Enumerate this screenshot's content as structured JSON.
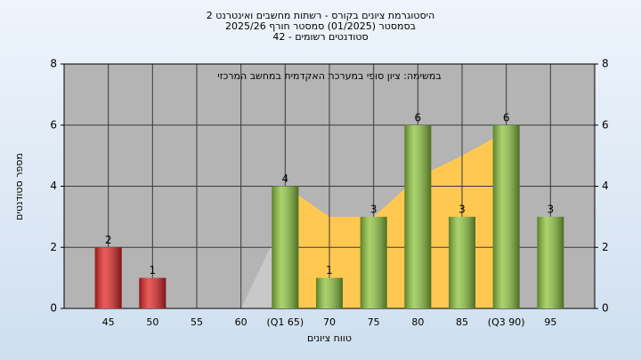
{
  "chart_data": {
    "type": "bar",
    "title": [
      "היסטוגרמת ציונים בקורס - רשתות מחשבים ואינטרנט 2",
      "בסמסטר  (01/2025)  סמסטר חורף 2025/26",
      "סטודנטים רשומים - 42"
    ],
    "annotation": "במשימה: ציון סופי במערכת האקדמית במחשב המרכזי",
    "x_label": "טווח ציונים",
    "y_label": "מספר סטודנטים",
    "categories": [
      "45",
      "50",
      "55",
      "60",
      "(Q1 65)",
      "70",
      "75",
      "80",
      "85",
      "(Q3 90)",
      "95"
    ],
    "values": [
      2,
      1,
      0,
      0,
      4,
      1,
      3,
      6,
      3,
      6,
      3
    ],
    "colors": [
      "#e02424",
      "#e02424",
      "#e02424",
      "#e02424",
      "#8cc43c",
      "#8cc43c",
      "#8cc43c",
      "#8cc43c",
      "#8cc43c",
      "#8cc43c",
      "#8cc43c"
    ],
    "overlays": [
      {
        "type": "area",
        "color": "#c8c8c8",
        "values": [
          null,
          null,
          null,
          0,
          3,
          null,
          null,
          null,
          null,
          null,
          null
        ]
      },
      {
        "type": "area",
        "color": "#ffc850",
        "values": [
          null,
          null,
          null,
          null,
          4,
          3,
          3,
          4.3,
          5,
          5.8,
          null
        ]
      }
    ],
    "ylim": [
      0,
      8
    ],
    "yticks": [
      0,
      2,
      4,
      6,
      8
    ],
    "grid": true
  }
}
